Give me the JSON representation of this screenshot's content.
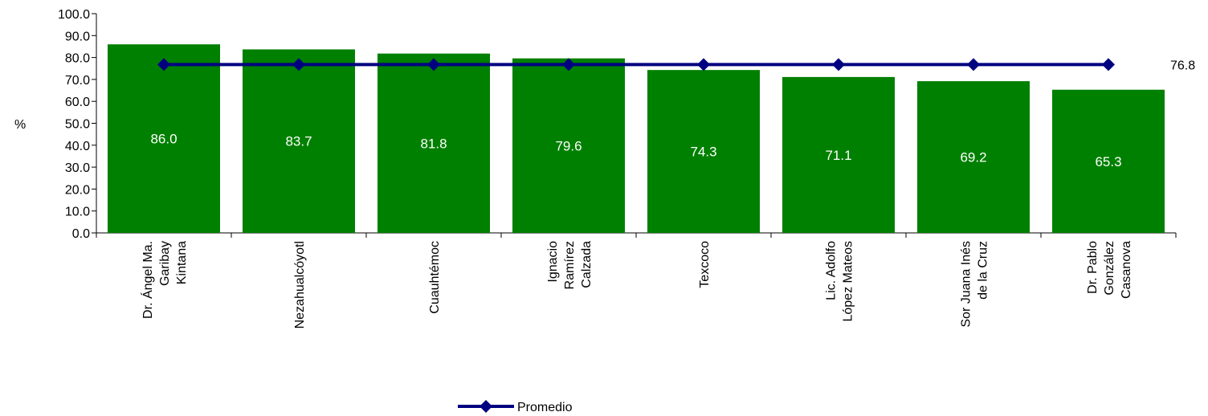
{
  "chart_data": {
    "type": "bar",
    "categories": [
      [
        "Dr. Ángel Ma.",
        "Garibay",
        "Kintana"
      ],
      [
        "Nezahualcóyotl"
      ],
      [
        "Cuauhtémoc"
      ],
      [
        "Ignacio",
        "Ramírez",
        "Calzada"
      ],
      [
        "Texcoco"
      ],
      [
        "Lic. Adolfo",
        "López Mateos"
      ],
      [
        "Sor Juana Inés",
        "de la Cruz"
      ],
      [
        "Dr. Pablo",
        "González",
        "Casanova"
      ]
    ],
    "values": [
      86.0,
      83.7,
      81.8,
      79.6,
      74.3,
      71.1,
      69.2,
      65.3
    ],
    "value_labels": [
      "86.0",
      "83.7",
      "81.8",
      "79.6",
      "74.3",
      "71.1",
      "69.2",
      "65.3"
    ],
    "average": {
      "name": "Promedio",
      "value": 76.8,
      "label": "76.8"
    },
    "ylabel": "%",
    "ylim": [
      0,
      100
    ],
    "yticks": [
      "0.0",
      "10.0",
      "20.0",
      "30.0",
      "40.0",
      "50.0",
      "60.0",
      "70.0",
      "80.0",
      "90.0",
      "100.0"
    ],
    "grid": false,
    "legend": "bottom-center",
    "colors": {
      "bar": "#008000",
      "line": "#000080"
    }
  }
}
